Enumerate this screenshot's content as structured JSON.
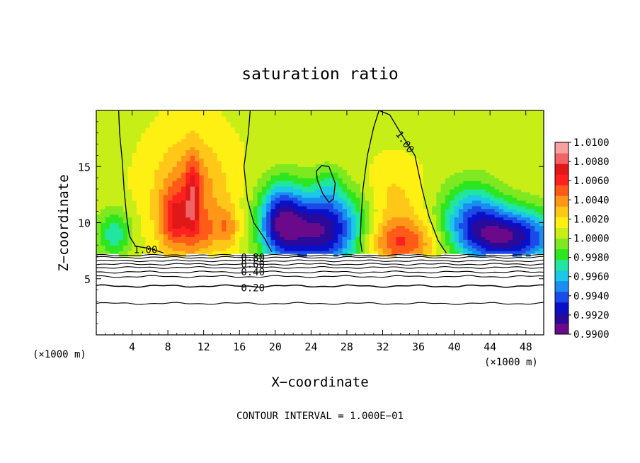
{
  "chart_data": {
    "type": "heatmap",
    "title": "saturation ratio",
    "xlabel": "X−coordinate",
    "ylabel": "Z−coordinate",
    "x_unit_left": "(×1000 m)",
    "x_unit_right": "(×1000 m)",
    "footer": "CONTOUR INTERVAL = 1.000E−01",
    "xlim": [
      0,
      50
    ],
    "ylim": [
      0,
      20
    ],
    "x_ticks": [
      4,
      8,
      12,
      16,
      20,
      24,
      28,
      32,
      36,
      40,
      44,
      48
    ],
    "y_ticks": [
      5,
      10,
      15
    ],
    "colorbar": {
      "labels": [
        "1.0100",
        "1.0080",
        "1.0060",
        "1.0040",
        "1.0020",
        "1.0000",
        "0.9980",
        "0.9960",
        "0.9940",
        "0.9920",
        "0.9900"
      ],
      "range": [
        0.99,
        1.01
      ],
      "colors": [
        "#6a0a8a",
        "#2a0a9a",
        "#0a10c8",
        "#1a4be8",
        "#1a8ef0",
        "#1cc8e8",
        "#20e6a0",
        "#2ee620",
        "#7ee820",
        "#c8ee18",
        "#fff014",
        "#ffc818",
        "#ff9618",
        "#ff5a18",
        "#ff2020",
        "#e01818",
        "#f06464",
        "#f7a0a0"
      ]
    },
    "contour_labels": [
      {
        "text": "1.00",
        "x": 34.5,
        "z": 17.2
      },
      {
        "text": "1.00",
        "x": 5.5,
        "z": 7.6
      },
      {
        "text": "0.80",
        "x": 17.5,
        "z": 6.9
      },
      {
        "text": "0.60",
        "x": 17.5,
        "z": 6.3
      },
      {
        "text": "0.40",
        "x": 17.5,
        "z": 5.6
      },
      {
        "text": "0.20",
        "x": 17.5,
        "z": 4.2
      }
    ],
    "contour_levels_below": [
      0.2,
      0.4,
      0.6,
      0.8,
      1.0
    ]
  }
}
